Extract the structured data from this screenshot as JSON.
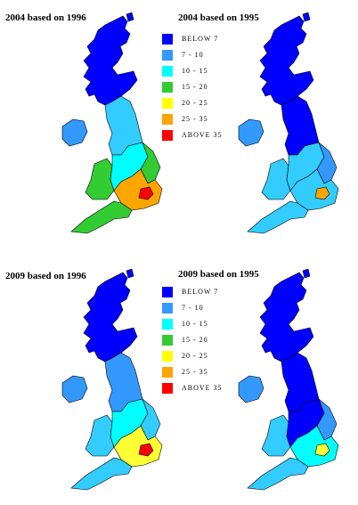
{
  "panels": [
    {
      "title": "2004 based on 1996",
      "regions": {
        "scot": "#0000ff",
        "ni": "#3399ff",
        "north": "#33ccff",
        "wales": "#33cc33",
        "mids": "#00ffff",
        "east": "#33cc33",
        "se": "#ffa500",
        "london": "#ff0000"
      }
    },
    {
      "title": "2004 based on 1995",
      "regions": {
        "scot": "#0000ff",
        "ni": "#3399ff",
        "north": "#0000ff",
        "wales": "#33ccff",
        "mids": "#33ccff",
        "east": "#3399ff",
        "se": "#33ccff",
        "london": "#ffa500"
      }
    },
    {
      "title": "2009 based on 1996",
      "regions": {
        "scot": "#0000ff",
        "ni": "#3399ff",
        "north": "#3399ff",
        "wales": "#33ccff",
        "mids": "#00ffff",
        "east": "#33ccff",
        "se": "#ffff33",
        "london": "#ff0000"
      }
    },
    {
      "title": "2009 based on 1995",
      "regions": {
        "scot": "#0000ff",
        "ni": "#3399ff",
        "north": "#0000ff",
        "wales": "#33ccff",
        "mids": "#0000ff",
        "east": "#3399ff",
        "se": "#00ffff",
        "london": "#ffff33"
      }
    }
  ],
  "legend": [
    {
      "label": "BELOW  7",
      "color": "#0000ff"
    },
    {
      "label": "7  -  10",
      "color": "#3399ff"
    },
    {
      "label": "10  -  15",
      "color": "#00ffff"
    },
    {
      "label": "15  -  20",
      "color": "#33cc33"
    },
    {
      "label": "20  -  25",
      "color": "#ffff00"
    },
    {
      "label": "25  -  35",
      "color": "#ffa500"
    },
    {
      "label": "ABOVE 35",
      "color": "#ff0000"
    }
  ]
}
